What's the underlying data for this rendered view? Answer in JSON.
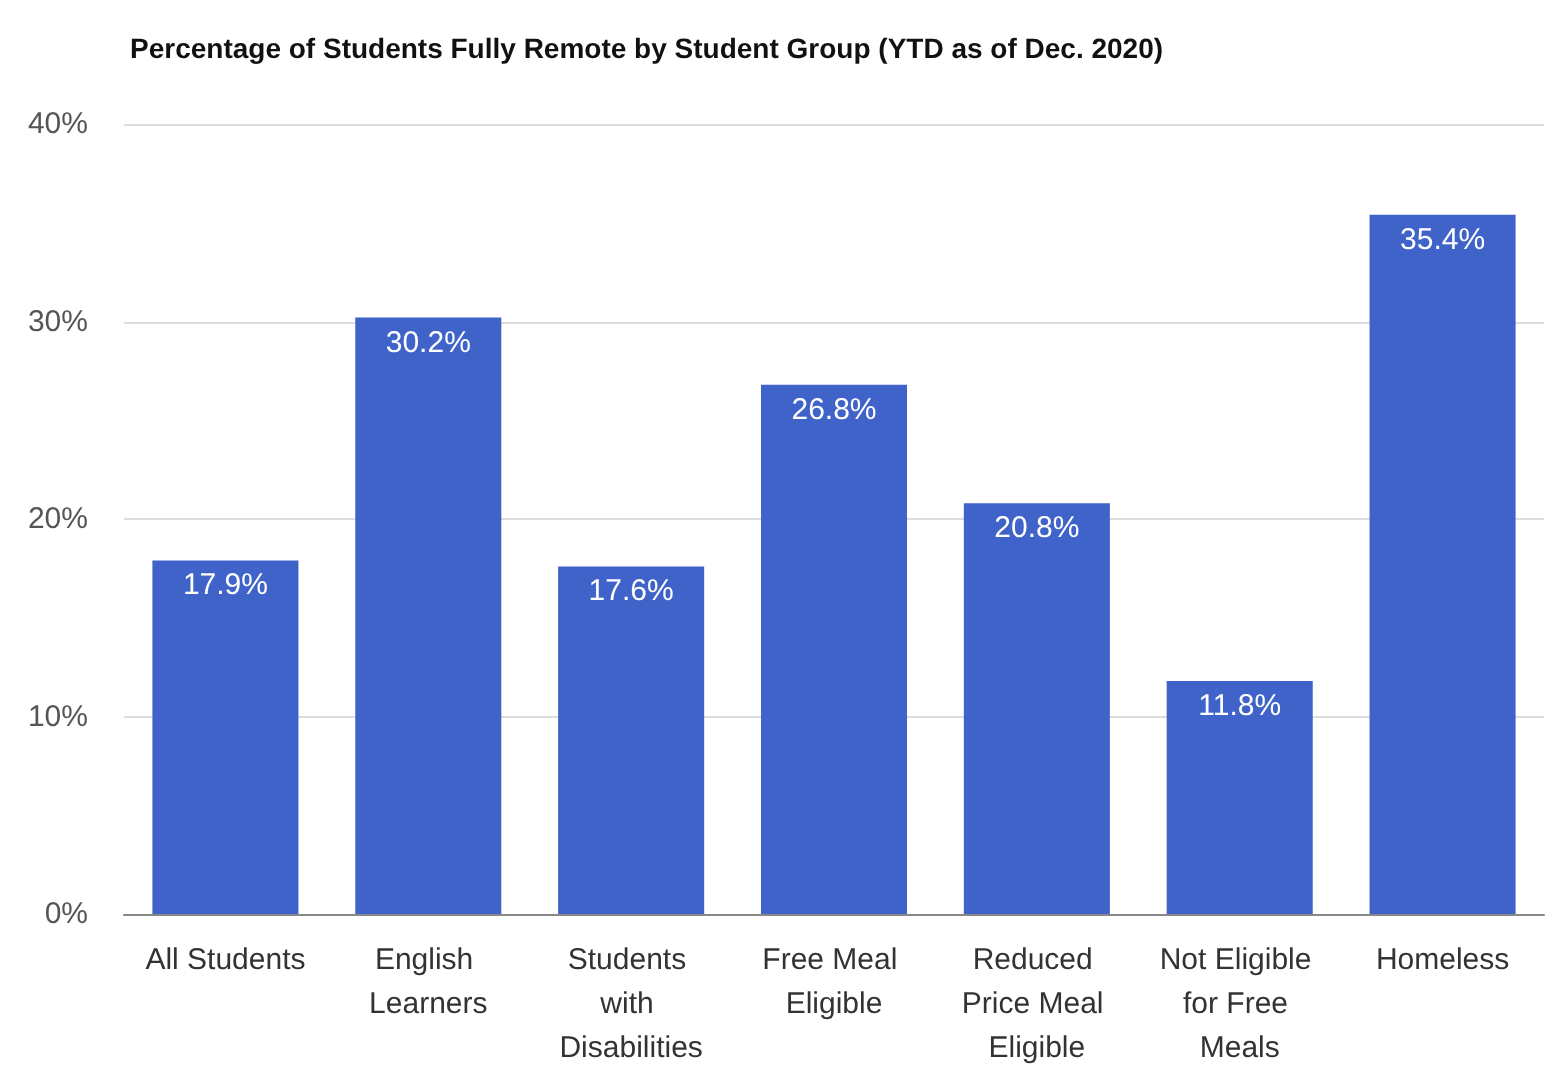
{
  "chart_data": {
    "type": "bar",
    "title": "Percentage of Students Fully Remote by Student Group (YTD as of Dec. 2020)",
    "categories": [
      "All Students",
      "English Learners",
      "Students with Disabilities",
      "Free Meal Eligible",
      "Reduced Price Meal Eligible",
      "Not Eligible for Free Meals",
      "Homeless"
    ],
    "values": [
      17.9,
      30.2,
      17.6,
      26.8,
      20.8,
      11.8,
      35.4
    ],
    "value_labels": [
      "17.9%",
      "30.2%",
      "17.6%",
      "26.8%",
      "20.8%",
      "11.8%",
      "35.4%"
    ],
    "color": "#3f63c9",
    "ylim": [
      0,
      40
    ],
    "yticks": [
      {
        "value": 0,
        "label": "0%"
      },
      {
        "value": 10,
        "label": "10%"
      },
      {
        "value": 20,
        "label": "20%"
      },
      {
        "value": 30,
        "label": "30%"
      },
      {
        "value": 40,
        "label": "40%"
      }
    ],
    "grid": true
  }
}
